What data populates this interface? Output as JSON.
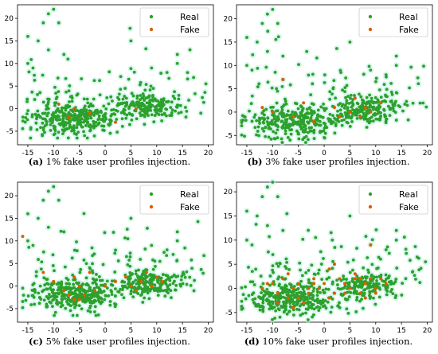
{
  "chart_data": [
    {
      "type": "scatter",
      "caption_tag": "(a)",
      "caption": "1% fake user profiles injection.",
      "xlim": [
        -17,
        21
      ],
      "ylim": [
        -8,
        23
      ],
      "xticks": [
        -15,
        -10,
        -5,
        0,
        5,
        10,
        15,
        20
      ],
      "yticks": [
        -5,
        0,
        5,
        10,
        15,
        20
      ],
      "legend_position": "top-right",
      "fake_x": [
        -9,
        -7,
        -6,
        -3,
        2,
        6
      ],
      "fake_y": [
        1,
        -2,
        0,
        -1,
        -3,
        0
      ]
    },
    {
      "type": "scatter",
      "caption_tag": "(b)",
      "caption": "3% fake user profiles injection.",
      "xlim": [
        -17,
        21
      ],
      "ylim": [
        -7,
        23
      ],
      "xticks": [
        -15,
        -10,
        -5,
        0,
        5,
        10,
        15,
        20
      ],
      "yticks": [
        -5,
        0,
        5,
        10,
        15,
        20
      ],
      "legend_position": "top-right",
      "fake_x": [
        -10,
        -8,
        -6,
        -4,
        -2,
        2,
        5,
        6,
        7,
        8,
        9,
        11,
        -12,
        3
      ],
      "fake_y": [
        0,
        7,
        -1,
        2,
        -2,
        1,
        0,
        3,
        -1,
        1,
        0,
        2,
        1,
        -1
      ]
    },
    {
      "type": "scatter",
      "caption_tag": "(c)",
      "caption": "5% fake user profiles injection.",
      "xlim": [
        -17,
        21
      ],
      "ylim": [
        -8,
        23
      ],
      "xticks": [
        -15,
        -10,
        -5,
        0,
        5,
        10,
        15,
        20
      ],
      "yticks": [
        -5,
        0,
        5,
        10,
        15,
        20
      ],
      "legend_position": "top-right",
      "fake_x": [
        -16,
        -12,
        -10,
        -8,
        -7,
        -6,
        -5,
        -4,
        -3,
        -2,
        0,
        2,
        4,
        5,
        6,
        7,
        8,
        9,
        10,
        11,
        -6,
        -5
      ],
      "fake_y": [
        11,
        3,
        1,
        -1,
        -2,
        -3,
        0,
        -2,
        3,
        -1,
        0,
        1,
        2,
        0,
        -1,
        1,
        3,
        0,
        2,
        1,
        2,
        -3
      ]
    },
    {
      "type": "scatter",
      "caption_tag": "(d)",
      "caption": "10% fake user profiles injection.",
      "xlim": [
        -17,
        21
      ],
      "ylim": [
        -7,
        22
      ],
      "xticks": [
        -15,
        -10,
        -5,
        0,
        5,
        10,
        15,
        20
      ],
      "yticks": [
        -5,
        0,
        5,
        10,
        15,
        20
      ],
      "legend_position": "top-right",
      "fake_x": [
        -12,
        -10,
        -9,
        -8,
        -7,
        -6,
        -5,
        -4,
        -3,
        -2,
        -1,
        0,
        1,
        2,
        3,
        4,
        5,
        6,
        7,
        8,
        9,
        10,
        11,
        12,
        -9,
        -7,
        -5,
        -3,
        1,
        2,
        6,
        8,
        9,
        10,
        -11,
        -6,
        4,
        7,
        10,
        -2
      ],
      "fake_y": [
        0,
        1,
        -1,
        2,
        -2,
        0,
        1,
        -3,
        -1,
        2,
        0,
        1,
        -2,
        5,
        2,
        1,
        0,
        2,
        -1,
        1,
        9,
        0,
        2,
        1,
        -3,
        3,
        -2,
        0,
        4,
        -1,
        3,
        -2,
        2,
        0,
        1,
        -4,
        -1,
        2,
        -1,
        1
      ]
    }
  ],
  "legend": {
    "real": "Real",
    "fake": "Fake"
  },
  "colors": {
    "real": "#2ca02c",
    "real_halo": "#b9f0e0",
    "fake": "#d95f02",
    "axis": "#000000"
  }
}
